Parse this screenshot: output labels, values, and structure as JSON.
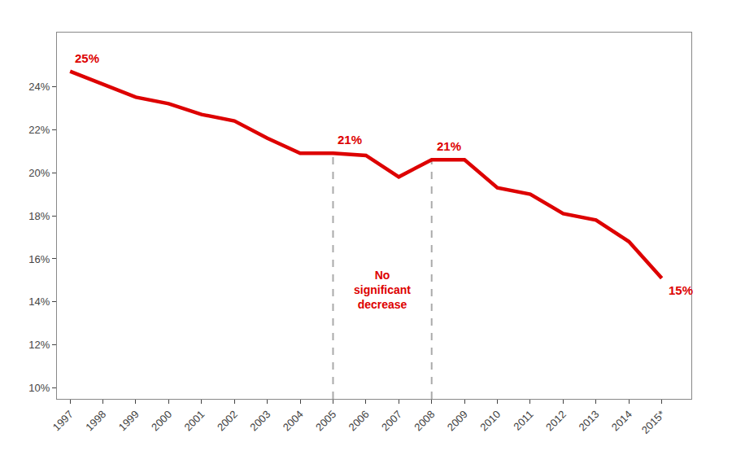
{
  "chart_data": {
    "type": "line",
    "x": [
      1997,
      1998,
      1999,
      2000,
      2001,
      2002,
      2003,
      2004,
      2005,
      2006,
      2007,
      2008,
      2009,
      2010,
      2011,
      2012,
      2013,
      2014,
      2015
    ],
    "values": [
      24.7,
      24.1,
      23.5,
      23.2,
      22.7,
      22.4,
      21.6,
      20.9,
      20.9,
      20.8,
      19.8,
      20.6,
      20.6,
      19.3,
      19.0,
      18.1,
      17.8,
      16.8,
      15.1
    ],
    "color": "#dd0000",
    "xlim": [
      1996.6,
      2015.9
    ],
    "xticks": [
      1997,
      1998,
      1999,
      2000,
      2001,
      2002,
      2003,
      2004,
      2005,
      2006,
      2007,
      2008,
      2009,
      2010,
      2011,
      2012,
      2013,
      2014,
      {
        "value": 2015,
        "label": "2015*"
      }
    ],
    "ylim": [
      9.5,
      26.5
    ],
    "yticks": [
      {
        "value": 10,
        "label": "10%"
      },
      {
        "value": 12,
        "label": "12%"
      },
      {
        "value": 14,
        "label": "14%"
      },
      {
        "value": 16,
        "label": "16%"
      },
      {
        "value": 18,
        "label": "18%"
      },
      {
        "value": 20,
        "label": "20%"
      },
      {
        "value": 22,
        "label": "22%"
      },
      {
        "value": 24,
        "label": "24%"
      }
    ],
    "grid": false,
    "vlines": {
      "x": [
        2005,
        2008
      ],
      "color": "#aaaaaa",
      "line_style": "dashed"
    },
    "annotations": [
      {
        "x": 1997,
        "y": 24.7,
        "text": "25%",
        "color": "#dd0000"
      },
      {
        "x": 2005,
        "y": 20.9,
        "text": "21%",
        "color": "#dd0000"
      },
      {
        "x": 2008,
        "y": 20.6,
        "text": "21%",
        "color": "#dd0000"
      },
      {
        "x": 2015,
        "y": 15.1,
        "text": "15%",
        "color": "#dd0000"
      },
      {
        "x": 2006.5,
        "y": 13.5,
        "text": "No\nsignificant\ndecrease",
        "color": "#dd0000"
      }
    ]
  }
}
